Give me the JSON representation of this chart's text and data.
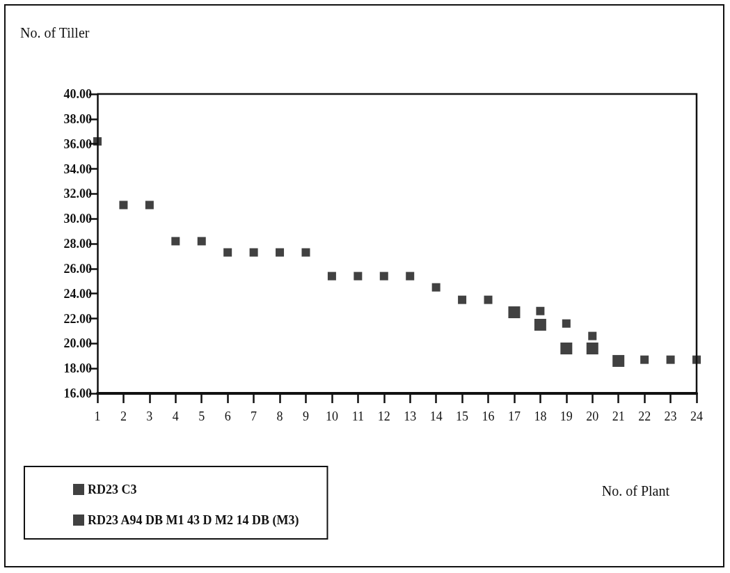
{
  "chart_data": {
    "type": "scatter",
    "ylabel": "No. of Tiller",
    "xlabel": "No. of Plant",
    "x": [
      1,
      2,
      3,
      4,
      5,
      6,
      7,
      8,
      9,
      10,
      11,
      12,
      13,
      14,
      15,
      16,
      17,
      18,
      19,
      20,
      21,
      22,
      23,
      24
    ],
    "series": [
      {
        "name": "RD23 C3",
        "color": "#111111",
        "values": [
          null,
          null,
          null,
          null,
          null,
          null,
          null,
          null,
          null,
          null,
          null,
          null,
          null,
          null,
          null,
          null,
          22.5,
          21.5,
          19.6,
          19.6,
          18.6,
          null,
          null,
          null
        ]
      },
      {
        "name": "RD23 A94 DB M1 43 D M2 14 DB (M3)",
        "color": "#111111",
        "values": [
          36.2,
          31.1,
          31.1,
          28.2,
          28.2,
          27.3,
          27.3,
          27.3,
          27.3,
          25.4,
          25.4,
          25.4,
          25.4,
          24.5,
          23.5,
          23.5,
          null,
          22.6,
          21.6,
          20.6,
          null,
          18.7,
          18.7,
          18.7
        ]
      }
    ],
    "xlim": [
      1,
      24
    ],
    "xticks": [
      1,
      2,
      3,
      4,
      5,
      6,
      7,
      8,
      9,
      10,
      11,
      12,
      13,
      14,
      15,
      16,
      17,
      18,
      19,
      20,
      21,
      22,
      23,
      24
    ],
    "ylim": [
      16,
      40
    ],
    "yticks": [
      {
        "value": 16,
        "label": "16.00"
      },
      {
        "value": 18,
        "label": "18.00"
      },
      {
        "value": 20,
        "label": "20.00"
      },
      {
        "value": 22,
        "label": "22.00"
      },
      {
        "value": 24,
        "label": "24.00"
      },
      {
        "value": 26,
        "label": "26.00"
      },
      {
        "value": 28,
        "label": "28.00"
      },
      {
        "value": 30,
        "label": "30.00"
      },
      {
        "value": 32,
        "label": "32.00"
      },
      {
        "value": 34,
        "label": "34.00"
      },
      {
        "value": 36,
        "label": "36.00"
      },
      {
        "value": 38,
        "label": "38.00"
      },
      {
        "value": 40,
        "label": "40.00"
      }
    ],
    "grid": false,
    "legend": "bottom left",
    "marker": "square"
  }
}
